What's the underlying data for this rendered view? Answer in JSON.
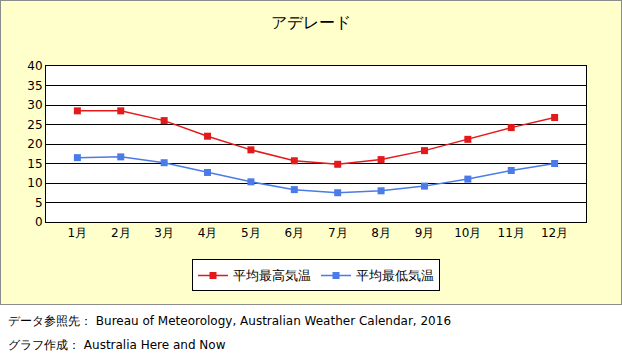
{
  "chart_data": {
    "type": "line",
    "title": "アデレード",
    "categories": [
      "1月",
      "2月",
      "3月",
      "4月",
      "5月",
      "6月",
      "7月",
      "8月",
      "9月",
      "10月",
      "11月",
      "12月"
    ],
    "series": [
      {
        "name": "平均最高気温",
        "color": "#e31a1c",
        "marker": "square",
        "values": [
          28.5,
          28.5,
          26,
          22,
          18.5,
          15.7,
          14.8,
          16,
          18.3,
          21.2,
          24.2,
          26.8
        ]
      },
      {
        "name": "平均最低気温",
        "color": "#4a7be8",
        "marker": "square",
        "values": [
          16.5,
          16.7,
          15.2,
          12.7,
          10.3,
          8.3,
          7.5,
          8,
          9.2,
          11,
          13.2,
          15
        ]
      }
    ],
    "ylim": [
      0,
      40
    ],
    "yticks": [
      0,
      5,
      10,
      15,
      20,
      25,
      30,
      35,
      40
    ],
    "grid": true,
    "legend": "bottom",
    "annotations": [
      "データ参照先： Bureau of Meteorology, Australian Weather Calendar, 2016",
      "グラフ作成： Australia Here and Now"
    ]
  }
}
